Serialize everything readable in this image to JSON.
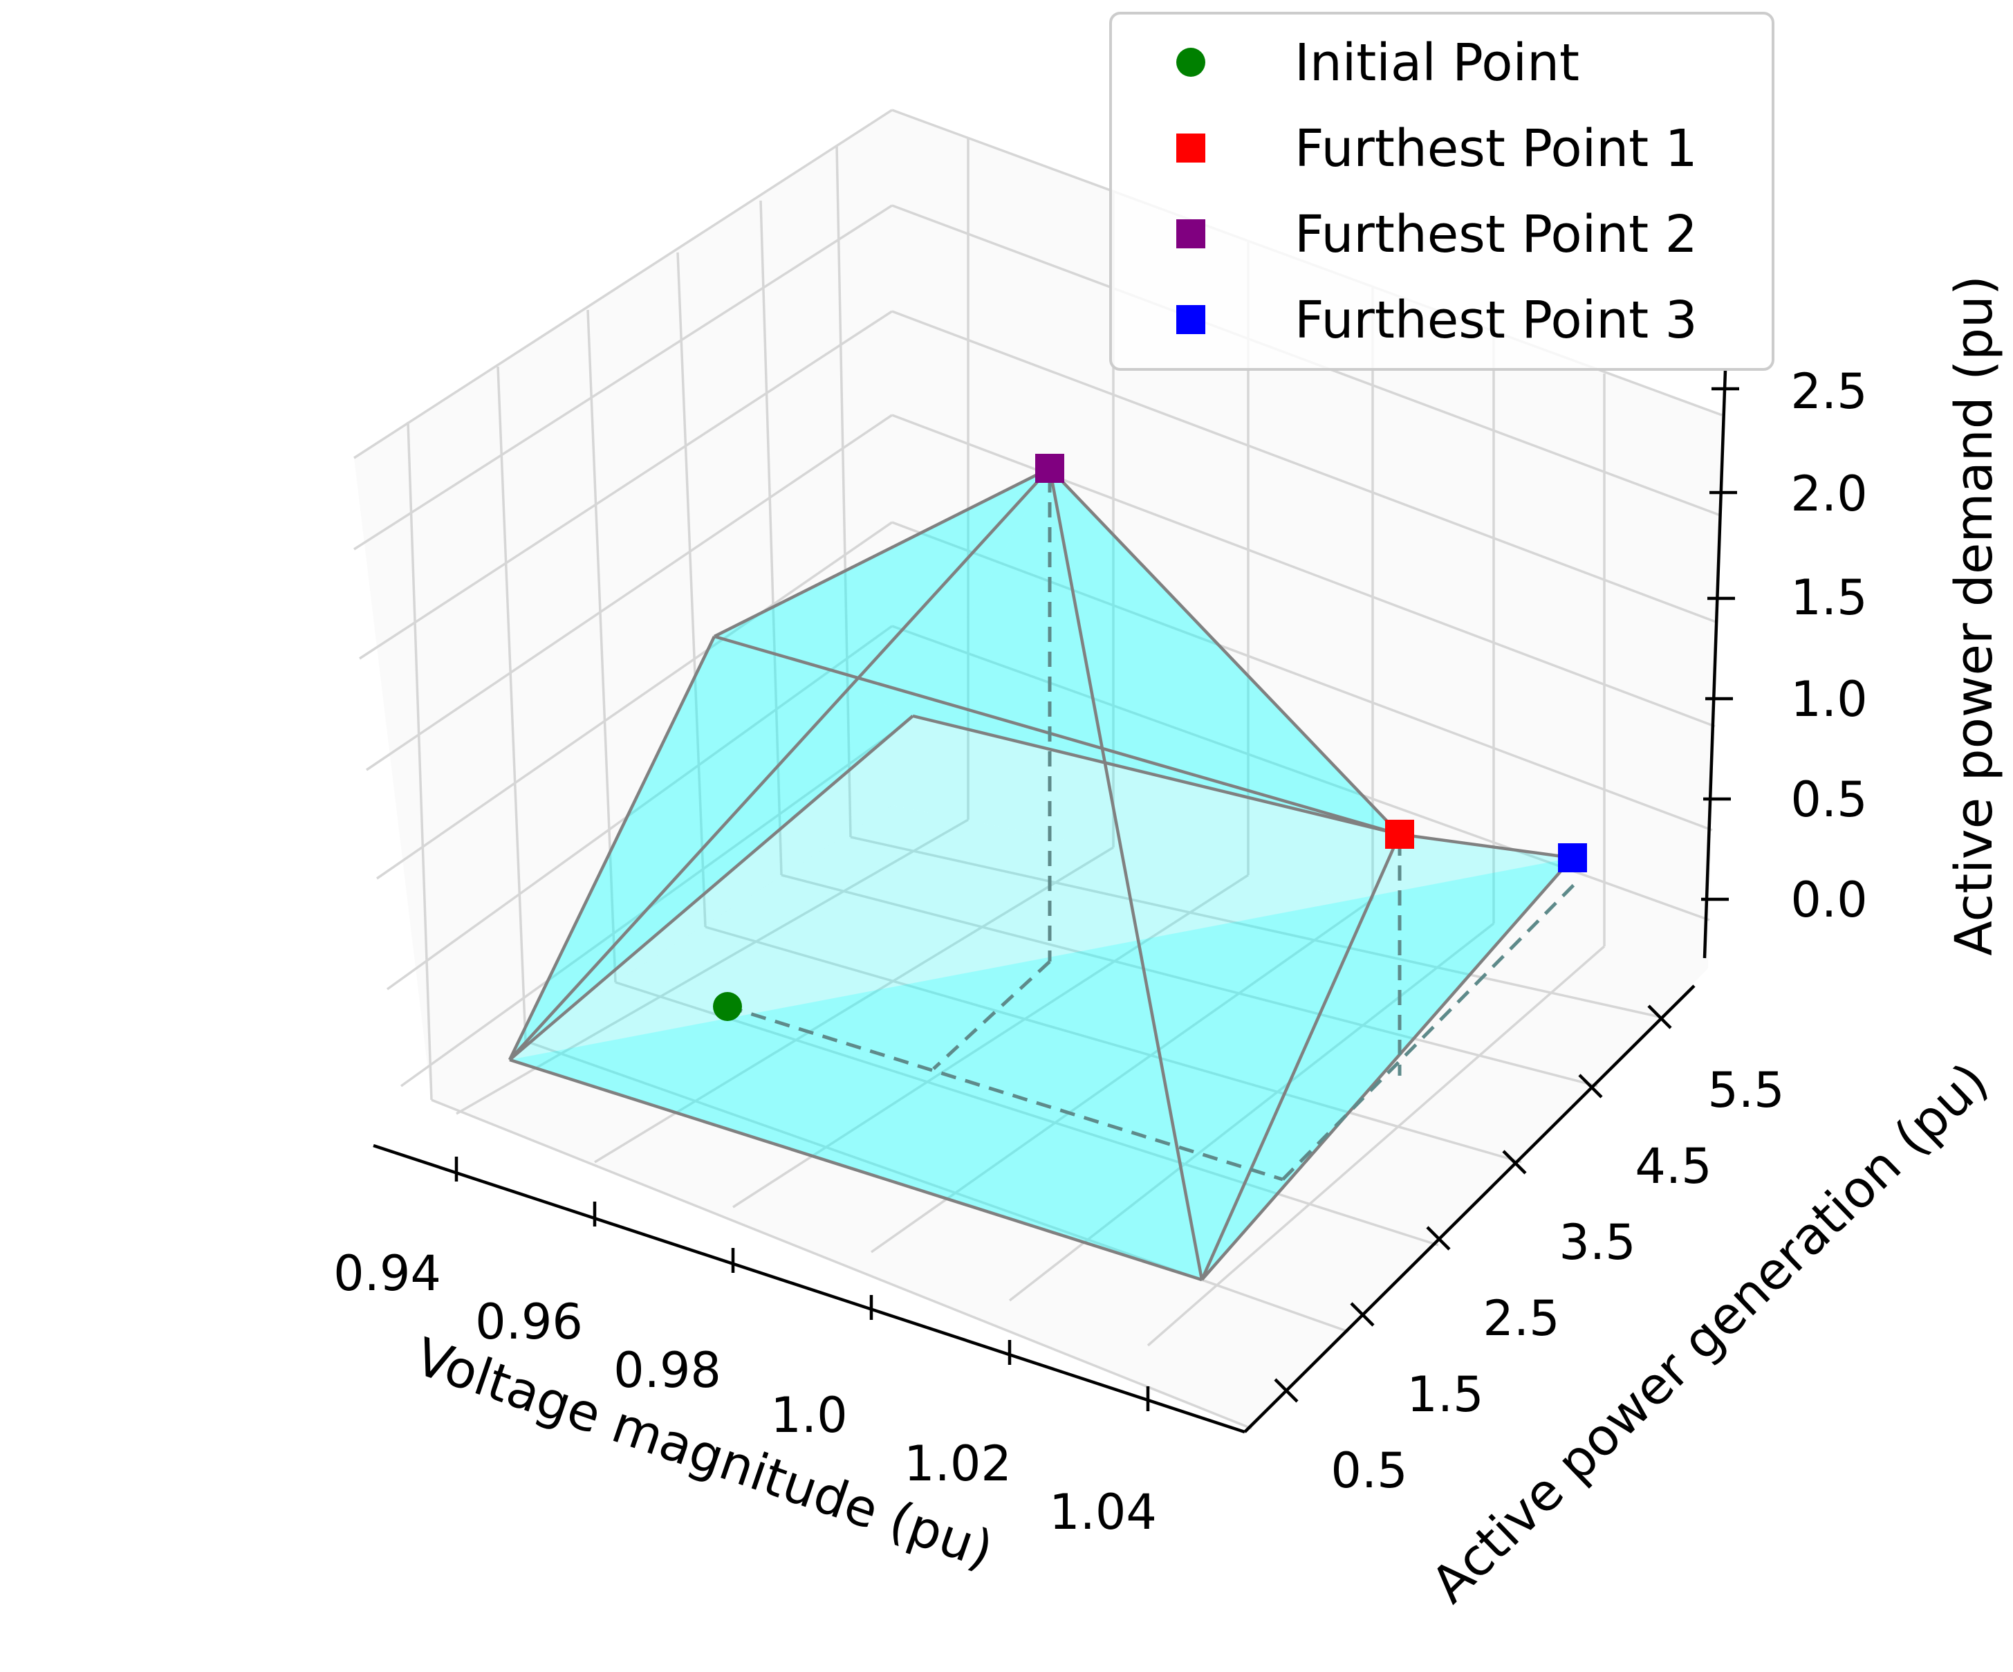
{
  "chart_data": {
    "type": "scatter3d",
    "axes": {
      "x": {
        "label": "Voltage magnitude (pu)",
        "ticks": [
          "0.94",
          "0.96",
          "0.98",
          "1.0",
          "1.02",
          "1.04"
        ],
        "range": [
          0.93,
          1.05
        ]
      },
      "y": {
        "label": "Active power generation (pu)",
        "ticks": [
          "0.5",
          "1.5",
          "2.5",
          "3.5",
          "4.5",
          "5.5"
        ],
        "range": [
          0.0,
          6.0
        ]
      },
      "z": {
        "label": "Active power demand (pu)",
        "ticks": [
          "0.0",
          "0.5",
          "1.0",
          "1.5",
          "2.0",
          "2.5"
        ],
        "range": [
          -0.2,
          2.6
        ]
      }
    },
    "grid": true,
    "legend_position": "top-right",
    "points": [
      {
        "name": "Initial Point",
        "marker": "circle",
        "color": "#008000",
        "x": 0.965,
        "y": 1.0,
        "z": 0.0
      },
      {
        "name": "Furthest Point 1",
        "marker": "square",
        "color": "#ff0000",
        "x": 1.045,
        "y": 3.6,
        "z": 0.3
      },
      {
        "name": "Furthest Point 2",
        "marker": "square",
        "color": "#800080",
        "x": 0.985,
        "y": 3.4,
        "z": 2.3
      },
      {
        "name": "Furthest Point 3",
        "marker": "square",
        "color": "#0000ff",
        "x": 1.045,
        "y": 5.6,
        "z": 0.05
      }
    ],
    "hull": {
      "fill_color": "#00ffff",
      "edge_color": "#808080",
      "vertices_2d_note": ""
    }
  }
}
